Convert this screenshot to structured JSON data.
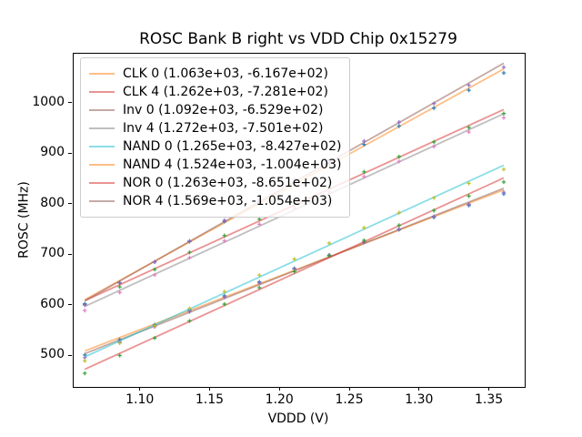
{
  "chart_data": {
    "type": "scatter",
    "title": "ROSC Bank B right vs VDD Chip 0x15279",
    "xlabel": "VDDD (V)",
    "ylabel": "ROSC (MHz)",
    "xlim": [
      1.052,
      1.375
    ],
    "ylim": [
      438.7,
      1098.7
    ],
    "grid": false,
    "legend_position": "upper left",
    "xticks": [
      1.1,
      1.15,
      1.2,
      1.25,
      1.3,
      1.35
    ],
    "xtick_labels": [
      "1.10",
      "1.15",
      "1.20",
      "1.25",
      "1.30",
      "1.35"
    ],
    "yticks": [
      500,
      600,
      700,
      800,
      900,
      1000
    ],
    "ytick_labels": [
      "500",
      "600",
      "700",
      "800",
      "900",
      "1000"
    ],
    "x": [
      1.06,
      1.085,
      1.11,
      1.135,
      1.16,
      1.185,
      1.21,
      1.235,
      1.26,
      1.285,
      1.31,
      1.335,
      1.36
    ],
    "series": [
      {
        "name": "CLK 0",
        "legend_label": "CLK 0 (1.063e+03, -6.167e+02)",
        "fit": {
          "slope": 1063,
          "intercept": -616.7
        },
        "fit_range": [
          1.06,
          1.36
        ],
        "line_color": "#ff7f0e",
        "line_alpha": 0.5,
        "marker_color": "#1f77b4",
        "values": [
          502.1,
          532.4,
          561.9,
          590.8,
          619.1,
          646.7,
          673.5,
          699.8,
          725.4,
          750.3,
          774.5,
          798.1,
          821.0
        ]
      },
      {
        "name": "CLK 4",
        "legend_label": "CLK 4 (1.262e+03, -7.281e+02)",
        "fit": {
          "slope": 1262,
          "intercept": -728.1
        },
        "fit_range": [
          1.06,
          1.36
        ],
        "line_color": "#d62728",
        "line_alpha": 0.5,
        "marker_color": "#2ca02c",
        "values": [
          601.6,
          636.9,
          671.4,
          705.3,
          738.5,
          771.0,
          802.9,
          834.2,
          864.7,
          894.6,
          923.8,
          952.4,
          980.2
        ]
      },
      {
        "name": "Inv 0",
        "legend_label": "Inv 0 (1.092e+03, -6.529e+02)",
        "fit": {
          "slope": 1092,
          "intercept": -652.9
        },
        "fit_range": [
          1.06,
          1.36
        ],
        "line_color": "#8c564b",
        "line_alpha": 0.5,
        "marker_color": "#9467bd",
        "values": [
          496.6,
          527.6,
          557.9,
          587.5,
          616.5,
          644.8,
          672.4,
          699.4,
          725.7,
          751.3,
          776.3,
          800.6,
          824.2
        ]
      },
      {
        "name": "Inv 4",
        "legend_label": "Inv 4 (1.272e+03, -7.501e+02)",
        "fit": {
          "slope": 1272,
          "intercept": -750.1
        },
        "fit_range": [
          1.06,
          1.36
        ],
        "line_color": "#7f7f7f",
        "line_alpha": 0.5,
        "marker_color": "#e377c2",
        "values": [
          590.2,
          625.7,
          660.5,
          694.6,
          728.1,
          760.9,
          793.0,
          824.5,
          855.3,
          885.4,
          914.9,
          943.7,
          971.8
        ]
      },
      {
        "name": "NAND 0",
        "legend_label": "NAND 0 (1.265e+03, -8.427e+02)",
        "fit": {
          "slope": 1265,
          "intercept": -842.7
        },
        "fit_range": [
          1.06,
          1.36
        ],
        "line_color": "#17becf",
        "line_alpha": 0.5,
        "marker_color": "#bcbd22",
        "values": [
          490.2,
          525.5,
          560.1,
          594.1,
          627.4,
          660.0,
          692.0,
          723.3,
          753.9,
          783.8,
          813.1,
          841.8,
          869.7
        ]
      },
      {
        "name": "NAND 4",
        "legend_label": "NAND 4 (1.524e+03, -1.004e+03)",
        "fit": {
          "slope": 1524,
          "intercept": -1004
        },
        "fit_range": [
          1.06,
          1.36
        ],
        "line_color": "#ff7f0e",
        "line_alpha": 0.5,
        "marker_color": "#1f77b4",
        "values": [
          603.4,
          645.2,
          686.3,
          726.7,
          766.5,
          805.6,
          844.0,
          881.8,
          918.9,
          955.3,
          991.1,
          1026.3,
          1060.6
        ]
      },
      {
        "name": "NOR 0",
        "legend_label": "NOR 0 (1.263e+03, -8.651e+02)",
        "fit": {
          "slope": 1263,
          "intercept": -865.1
        },
        "fit_range": [
          1.06,
          1.36
        ],
        "line_color": "#d62728",
        "line_alpha": 0.5,
        "marker_color": "#2ca02c",
        "values": [
          465.7,
          501.0,
          535.5,
          569.4,
          602.7,
          635.2,
          667.1,
          698.4,
          729.0,
          758.9,
          788.1,
          816.7,
          844.6
        ]
      },
      {
        "name": "NOR 4",
        "legend_label": "NOR 4 (1.569e+03, -1.054e+03)",
        "fit": {
          "slope": 1569,
          "intercept": -1054
        },
        "fit_range": [
          1.06,
          1.36
        ],
        "line_color": "#8c564b",
        "line_alpha": 0.5,
        "marker_color": "#9467bd",
        "values": [
          601.1,
          644.0,
          686.3,
          727.8,
          768.7,
          809.0,
          848.5,
          887.4,
          925.6,
          963.2,
          1000.1,
          1036.3,
          1071.9
        ]
      }
    ]
  }
}
